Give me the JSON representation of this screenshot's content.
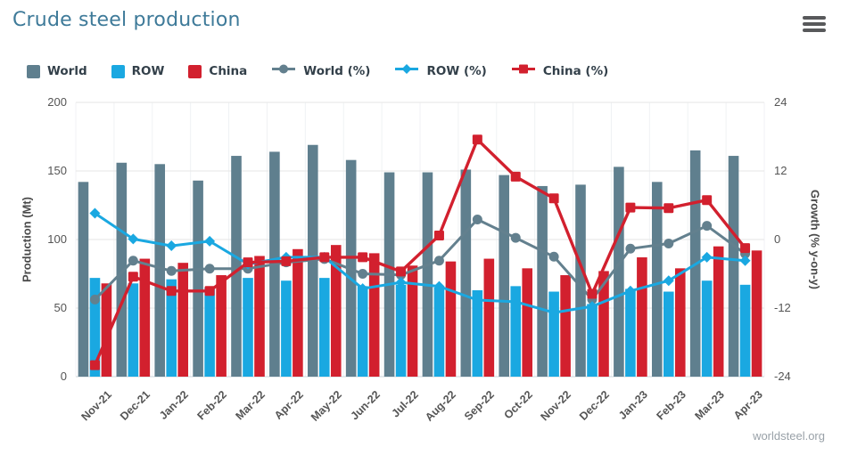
{
  "header": {
    "title": "Crude steel production",
    "menu_icon": "hamburger-icon"
  },
  "legend": {
    "items": [
      {
        "label": "World",
        "type": "bar",
        "marker": "square",
        "color": "#5F7F8E"
      },
      {
        "label": "ROW",
        "type": "bar",
        "marker": "square",
        "color": "#1AA8E1"
      },
      {
        "label": "China",
        "type": "bar",
        "marker": "square",
        "color": "#D2202E"
      },
      {
        "label": "World (%)",
        "type": "line",
        "marker": "circle",
        "color": "#63808E"
      },
      {
        "label": "ROW (%)",
        "type": "line",
        "marker": "diamond",
        "color": "#1AA8E1"
      },
      {
        "label": "China (%)",
        "type": "line",
        "marker": "square",
        "color": "#D2202E"
      }
    ]
  },
  "chart_data": {
    "type": "combo-bar-line",
    "categories": [
      "Nov-21",
      "Dec-21",
      "Jan-22",
      "Feb-22",
      "Mar-22",
      "Apr-22",
      "May-22",
      "Jun-22",
      "Jul-22",
      "Aug-22",
      "Sep-22",
      "Oct-22",
      "Nov-22",
      "Dec-22",
      "Jan-23",
      "Feb-23",
      "Mar-23",
      "Apr-23"
    ],
    "bar_series": [
      {
        "name": "World",
        "axis": "left",
        "color": "#5F7F8E",
        "values": [
          142,
          156,
          155,
          143,
          161,
          164,
          169,
          158,
          149,
          149,
          151,
          147,
          139,
          140,
          153,
          142,
          165,
          161
        ]
      },
      {
        "name": "ROW",
        "axis": "left",
        "color": "#1AA8E1",
        "values": [
          72,
          68,
          71,
          65,
          72,
          70,
          72,
          66,
          67,
          65,
          63,
          66,
          62,
          53,
          64,
          62,
          70,
          67
        ]
      },
      {
        "name": "China",
        "axis": "left",
        "color": "#D2202E",
        "values": [
          68,
          86,
          83,
          74,
          88,
          93,
          96,
          90,
          81,
          84,
          86,
          79,
          74,
          77,
          87,
          79,
          95,
          92
        ]
      }
    ],
    "line_series": [
      {
        "name": "World (%)",
        "axis": "right",
        "color": "#63808E",
        "marker": "circle",
        "values": [
          -10.5,
          -3.7,
          -5.5,
          -5.1,
          -5.1,
          -4.0,
          -3.4,
          -6.0,
          -6.2,
          -3.7,
          3.5,
          0.3,
          -3.0,
          -10.5,
          -1.6,
          -0.7,
          2.4,
          -2.5
        ]
      },
      {
        "name": "ROW (%)",
        "axis": "right",
        "color": "#1AA8E1",
        "marker": "diamond",
        "values": [
          4.6,
          0.1,
          -1.1,
          -0.3,
          -4.3,
          -3.1,
          -3.1,
          -8.6,
          -7.5,
          -8.2,
          -10.6,
          -10.9,
          -12.8,
          -11.7,
          -9.0,
          -7.2,
          -3.1,
          -3.7
        ]
      },
      {
        "name": "China (%)",
        "axis": "right",
        "color": "#D2202E",
        "marker": "square",
        "values": [
          -22,
          -6.5,
          -9.0,
          -9.0,
          -4.0,
          -3.8,
          -3.1,
          -3.1,
          -5.6,
          0.7,
          17.5,
          11.0,
          7.2,
          -9.5,
          5.6,
          5.5,
          6.9,
          -1.5
        ]
      }
    ],
    "left_axis": {
      "label": "Production (Mt)",
      "min": 0,
      "max": 200,
      "ticks": [
        200,
        150,
        100,
        50,
        0
      ]
    },
    "right_axis": {
      "label": "Growth (% y-on-y)",
      "min": -24,
      "max": 24,
      "ticks": [
        24,
        12,
        0,
        -12,
        -24
      ]
    },
    "grid": {
      "horizontal": true,
      "vertical": true,
      "color": "#E6E6E6",
      "vertical_color": "#F0F2F4",
      "baseline_color": "#CCD5DB"
    }
  },
  "footer": {
    "credit": "worldsteel.org"
  }
}
